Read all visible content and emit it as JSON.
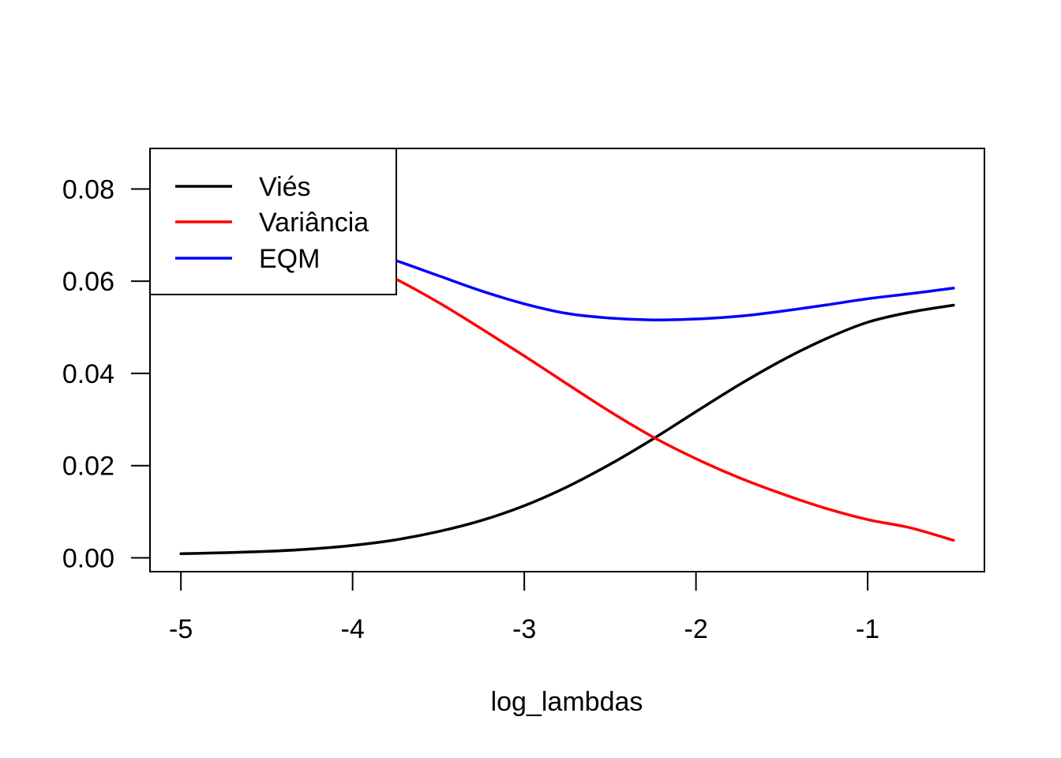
{
  "chart_data": {
    "type": "line",
    "title": "",
    "xlabel": "log_lambdas",
    "ylabel": "",
    "xlim": [
      -5.18,
      -0.32
    ],
    "ylim": [
      -0.003,
      0.0888
    ],
    "xticks": [
      -5,
      -4,
      -3,
      -2,
      -1
    ],
    "xtick_labels": [
      "-5",
      "-4",
      "-3",
      "-2",
      "-1"
    ],
    "yticks": [
      0.0,
      0.02,
      0.04,
      0.06,
      0.08
    ],
    "ytick_labels": [
      "0.00",
      "0.02",
      "0.04",
      "0.06",
      "0.08"
    ],
    "grid": false,
    "legend_position": "top-left",
    "x": [
      -5.0,
      -4.75,
      -4.5,
      -4.25,
      -4.0,
      -3.75,
      -3.5,
      -3.25,
      -3.0,
      -2.75,
      -2.5,
      -2.25,
      -2.0,
      -1.75,
      -1.5,
      -1.25,
      -1.0,
      -0.75,
      -0.5
    ],
    "series": [
      {
        "name": "Viés",
        "color": "#000000",
        "values": [
          0.0009,
          0.0011,
          0.0014,
          0.0019,
          0.0027,
          0.0039,
          0.0057,
          0.0081,
          0.0113,
          0.0154,
          0.0203,
          0.0258,
          0.0317,
          0.0375,
          0.0428,
          0.0474,
          0.0511,
          0.0533,
          0.0548
        ]
      },
      {
        "name": "Variância",
        "color": "#ff0000",
        "values": [
          0.0781,
          0.0762,
          0.0735,
          0.0695,
          0.0647,
          0.0605,
          0.0554,
          0.0497,
          0.0438,
          0.0377,
          0.0317,
          0.0262,
          0.0215,
          0.0174,
          0.0139,
          0.0108,
          0.0083,
          0.0065,
          0.0038
        ]
      },
      {
        "name": "EQM",
        "color": "#0000ff",
        "values": [
          0.0789,
          0.0771,
          0.0749,
          0.0714,
          0.0674,
          0.0645,
          0.0612,
          0.0579,
          0.0551,
          0.053,
          0.052,
          0.0516,
          0.0518,
          0.0524,
          0.0535,
          0.0548,
          0.0562,
          0.0573,
          0.0585
        ]
      }
    ]
  }
}
